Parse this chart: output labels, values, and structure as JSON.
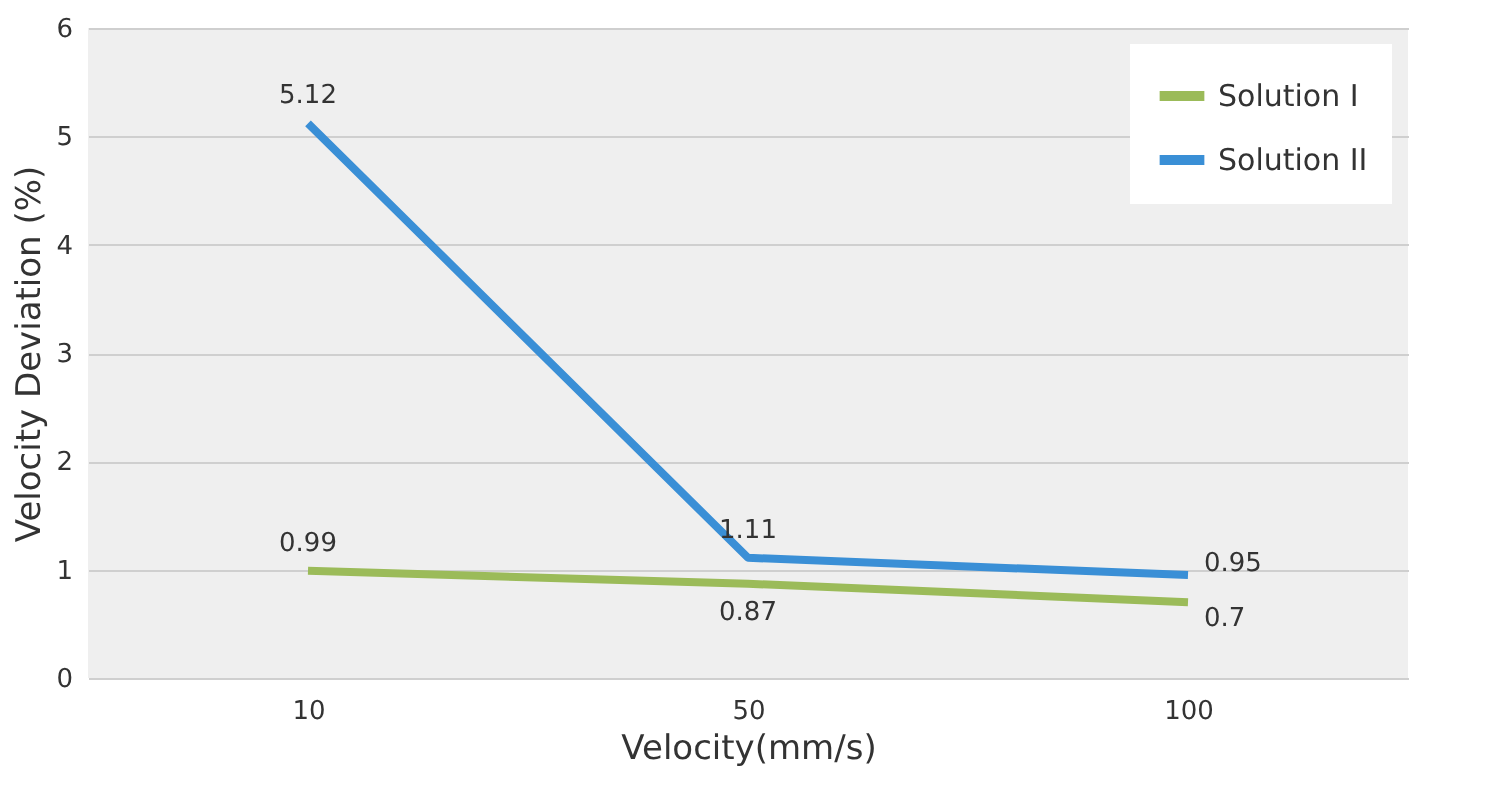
{
  "chart_data": {
    "type": "line",
    "xlabel": "Velocity(mm/s)",
    "ylabel": "Velocity Deviation (%)",
    "categories": [
      "10",
      "50",
      "100"
    ],
    "series": [
      {
        "name": "Solution I",
        "color": "#9bbb59",
        "values": [
          0.99,
          0.87,
          0.7
        ]
      },
      {
        "name": "Solution II",
        "color": "#3a8fd6",
        "values": [
          5.12,
          1.11,
          0.95
        ]
      }
    ],
    "ylim": [
      0,
      6
    ],
    "yticks": [
      0,
      1,
      2,
      3,
      4,
      5,
      6
    ],
    "grid": "y",
    "legend": "top right",
    "data_labels": true,
    "marker": "none",
    "line_style": "solid"
  }
}
